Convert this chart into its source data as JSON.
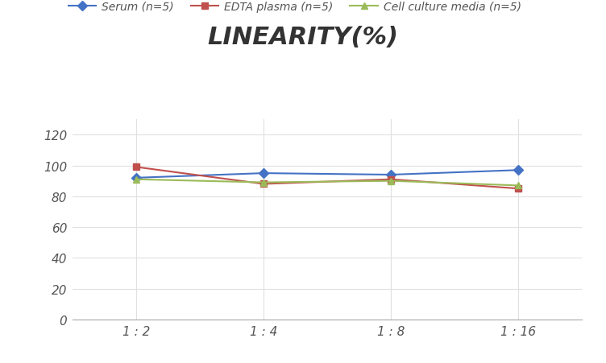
{
  "title": "LINEARITY(%)",
  "x_labels": [
    "1 : 2",
    "1 : 4",
    "1 : 8",
    "1 : 16"
  ],
  "x_positions": [
    0,
    1,
    2,
    3
  ],
  "series": [
    {
      "label": "Serum (n=5)",
      "values": [
        92,
        95,
        94,
        97
      ],
      "color": "#4472C4",
      "marker": "D",
      "linewidth": 1.5
    },
    {
      "label": "EDTA plasma (n=5)",
      "values": [
        99,
        88,
        91,
        85
      ],
      "color": "#C0504D",
      "marker": "s",
      "linewidth": 1.5
    },
    {
      "label": "Cell culture media (n=5)",
      "values": [
        91,
        89,
        90,
        87
      ],
      "color": "#9BBB59",
      "marker": "^",
      "linewidth": 1.5
    }
  ],
  "ylim": [
    0,
    130
  ],
  "yticks": [
    0,
    20,
    40,
    60,
    80,
    100,
    120
  ],
  "background_color": "#FFFFFF",
  "grid_color": "#E0E0E0",
  "title_fontsize": 22,
  "legend_fontsize": 10,
  "tick_fontsize": 11
}
